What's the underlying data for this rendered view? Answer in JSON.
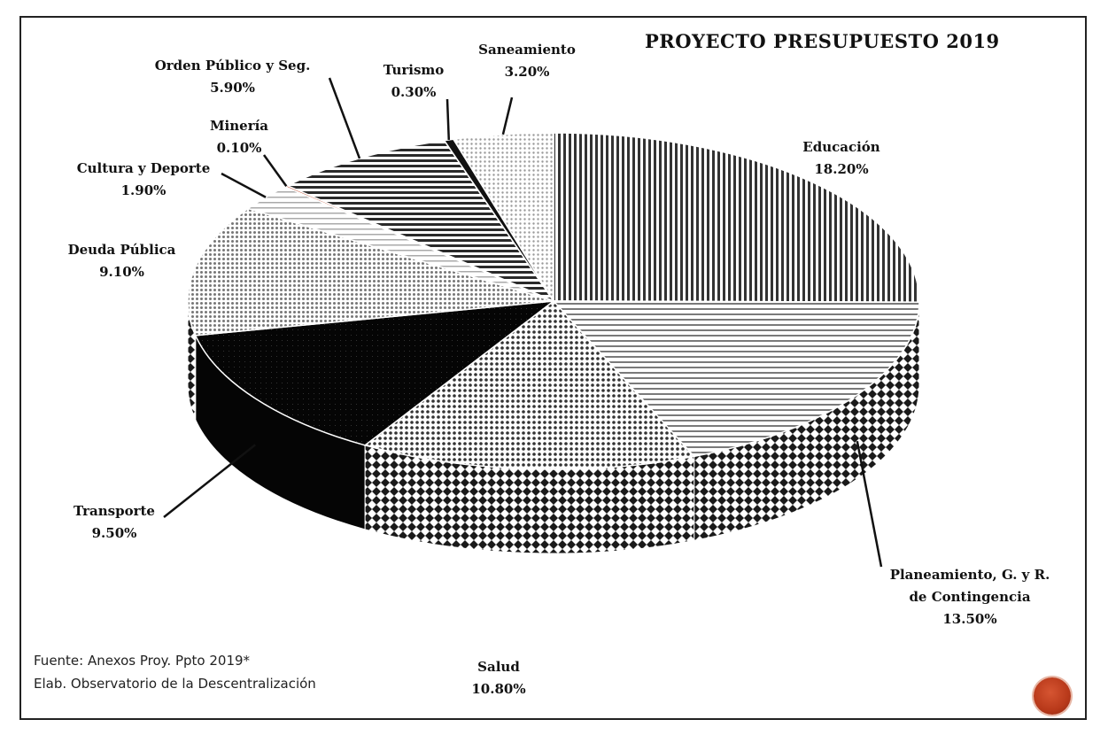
{
  "chart_data": {
    "type": "pie",
    "title": "PROYECTO PRESUPUESTO 2019",
    "slices": [
      {
        "label": "Educación",
        "value_label": "18.20%",
        "value": 18.2,
        "color": "#5a5a5a"
      },
      {
        "label": "Planeamiento, G. y R. de Contingencia",
        "label_lines": [
          "Planeamiento, G. y R.",
          "de Contingencia"
        ],
        "value_label": "13.50%",
        "value": 13.5,
        "color": "#c9c9c9"
      },
      {
        "label": "Salud",
        "value_label": "10.80%",
        "value": 10.8,
        "color": "#8e8e8e"
      },
      {
        "label": "Transporte",
        "value_label": "9.50%",
        "value": 9.5,
        "color": "#0b0b0b"
      },
      {
        "label": "Deuda Pública",
        "value_label": "9.10%",
        "value": 9.1,
        "color": "#b4b4b4"
      },
      {
        "label": "Cultura y Deporte",
        "value_label": "1.90%",
        "value": 1.9,
        "color": "#e2e2e2"
      },
      {
        "label": "Minería",
        "value_label": "0.10%",
        "value": 0.1,
        "color": "#b8391a"
      },
      {
        "label": "Orden Público y Seg.",
        "value_label": "5.90%",
        "value": 5.9,
        "color": "#6b6b6b"
      },
      {
        "label": "Turismo",
        "value_label": "0.30%",
        "value": 0.3,
        "color": "#1a1a1a"
      },
      {
        "label": "Saneamiento",
        "value_label": "3.20%",
        "value": 3.2,
        "color": "#d4d4d4"
      }
    ]
  },
  "source": {
    "line1": "Fuente: Anexos Proy. Ppto 2019*",
    "line2": "Elab. Observatorio de la Descentralización"
  }
}
